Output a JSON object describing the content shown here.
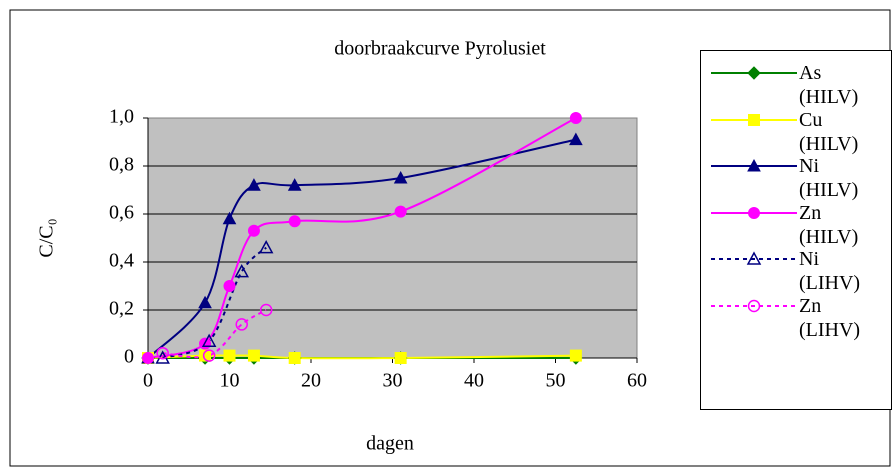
{
  "chart_data": {
    "type": "line",
    "title": "doorbraakcurve Pyrolusiet",
    "x_label": "dagen",
    "y_label": "C/C₀",
    "xlim": [
      0,
      60
    ],
    "xticks": [
      0,
      10,
      20,
      30,
      40,
      50,
      60
    ],
    "ylim": [
      0,
      1
    ],
    "yticks": [
      {
        "value": 0,
        "label": "0"
      },
      {
        "value": 0.2,
        "label": "0,2"
      },
      {
        "value": 0.4,
        "label": "0,4"
      },
      {
        "value": 0.6,
        "label": "0,6"
      },
      {
        "value": 0.8,
        "label": "0,8"
      },
      {
        "value": 1,
        "label": "1,0"
      }
    ],
    "grid": true,
    "legend": "right",
    "series": [
      {
        "name": "As (HILV)",
        "color": "#008000",
        "marker": "diamond",
        "fill": true,
        "dash": false,
        "x": [
          0,
          7,
          10,
          13,
          18,
          31,
          52.5
        ],
        "values": [
          0,
          0,
          0,
          0,
          0,
          0,
          0
        ]
      },
      {
        "name": "Cu (HILV)",
        "color": "#ffff00",
        "marker": "square",
        "fill": true,
        "dash": false,
        "x": [
          0,
          7,
          10,
          13,
          18,
          31,
          52.5
        ],
        "values": [
          0,
          0.01,
          0.01,
          0.01,
          0,
          0,
          0.01
        ]
      },
      {
        "name": "Ni (HILV)",
        "color": "#000080",
        "marker": "triangle",
        "fill": true,
        "dash": false,
        "x": [
          0,
          7,
          10,
          13,
          18,
          31,
          52.5
        ],
        "values": [
          0,
          0.23,
          0.58,
          0.72,
          0.72,
          0.75,
          0.91
        ]
      },
      {
        "name": "Zn (HILV)",
        "color": "#ff00ff",
        "marker": "circle",
        "fill": true,
        "dash": false,
        "x": [
          0,
          7,
          10,
          13,
          18,
          31,
          52.5
        ],
        "values": [
          0,
          0.06,
          0.3,
          0.53,
          0.57,
          0.61,
          1
        ]
      },
      {
        "name": "Ni (LIHV)",
        "color": "#000080",
        "marker": "triangle",
        "fill": false,
        "dash": true,
        "x": [
          1.8,
          7.5,
          11.5,
          14.5
        ],
        "values": [
          0,
          0.07,
          0.36,
          0.46
        ]
      },
      {
        "name": "Zn (LIHV)",
        "color": "#ff00ff",
        "marker": "circle",
        "fill": false,
        "dash": true,
        "x": [
          1.8,
          7.5,
          11.5,
          14.5
        ],
        "values": [
          0.02,
          0.01,
          0.14,
          0.2
        ]
      }
    ]
  }
}
